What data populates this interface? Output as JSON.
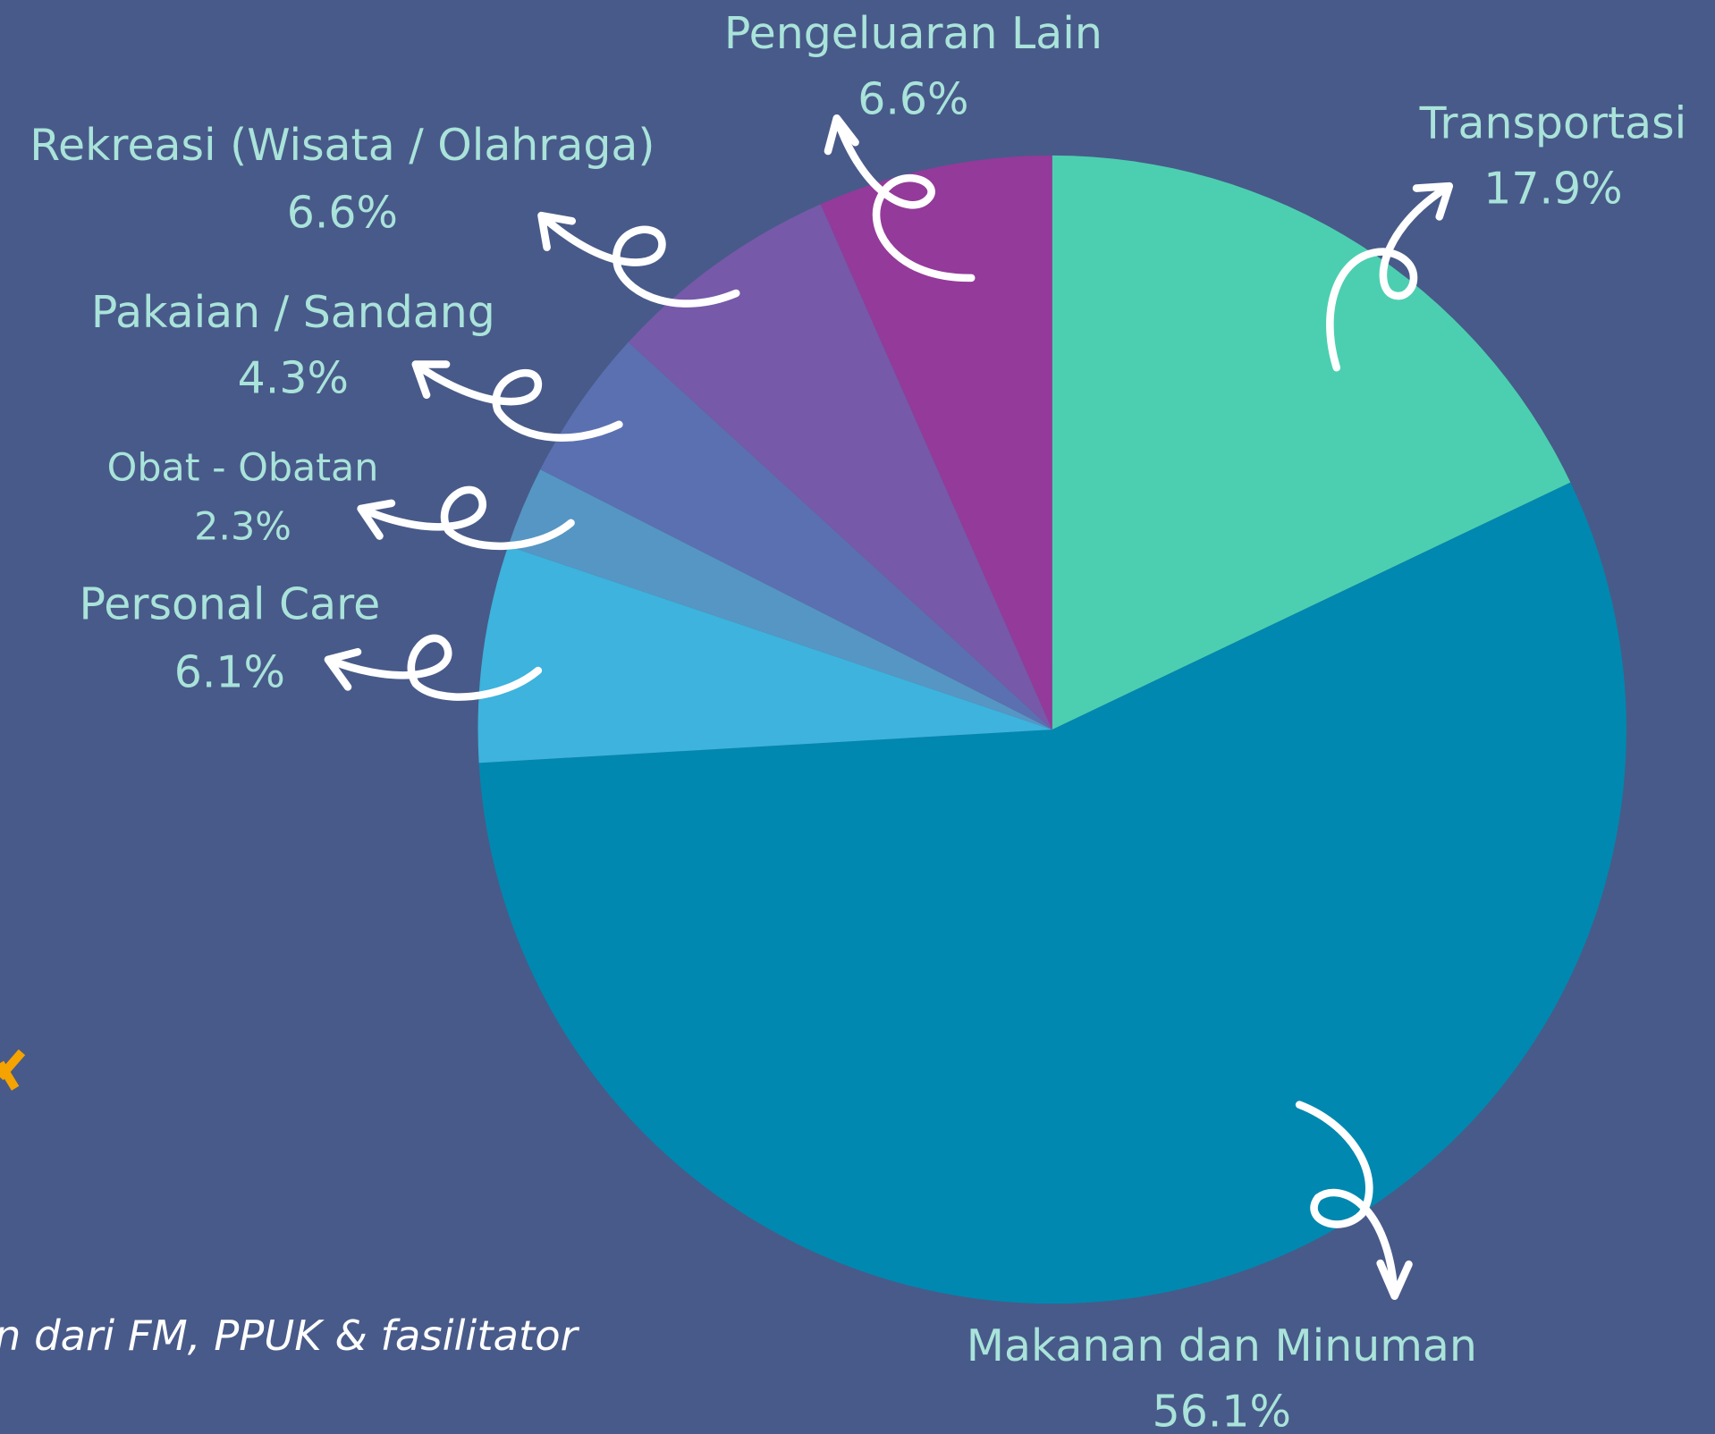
{
  "chart_data": {
    "type": "pie",
    "categories": [
      "Transportasi",
      "Makanan dan Minuman",
      "Personal Care",
      "Obat - Obatan",
      "Pakaian / Sandang",
      "Rekreasi (Wisata / Olahraga)",
      "Pengeluaran Lain"
    ],
    "values": [
      17.9,
      56.1,
      6.1,
      2.3,
      4.3,
      6.6,
      6.6
    ],
    "value_labels": [
      "17.9%",
      "56.1%",
      "6.1%",
      "2.3%",
      "4.3%",
      "6.6%",
      "6.6%"
    ],
    "colors": [
      "#4ccfb0",
      "#0088b0",
      "#3db3dd",
      "#5596c4",
      "#5b70b0",
      "#7659a9",
      "#943a9a"
    ],
    "note": "n dari FM, PPUK & fasilitator"
  }
}
